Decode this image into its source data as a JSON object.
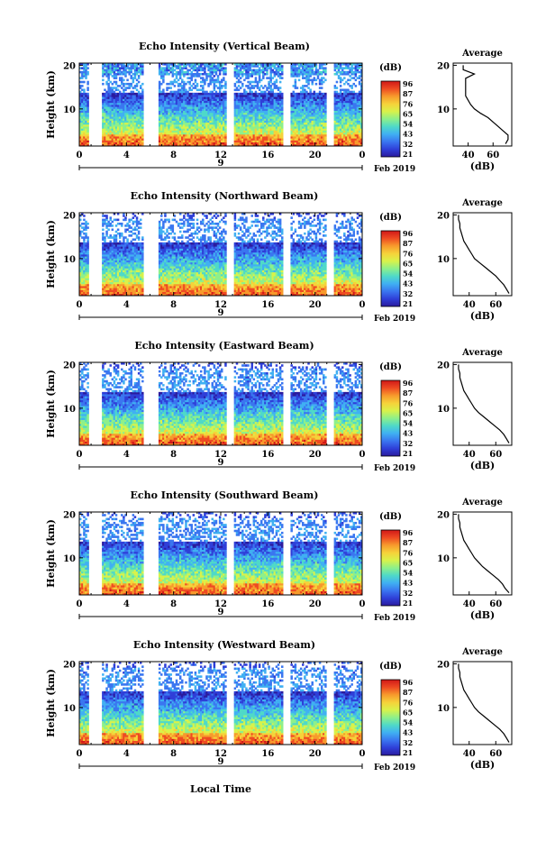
{
  "figure": {
    "bottom_xlabel": "Local Time",
    "date_label": "Feb 2019",
    "day_label": "9"
  },
  "colorbar": {
    "unit_label": "(dB)",
    "ticks": [
      "96",
      "87",
      "76",
      "65",
      "54",
      "43",
      "32",
      "21"
    ],
    "colors": [
      "#2b1b9e",
      "#2f3fd8",
      "#3a76f0",
      "#40b0f2",
      "#4fd9c8",
      "#8ef08a",
      "#d9f24a",
      "#f6d23a",
      "#f79a2c",
      "#ee4a22",
      "#d01818"
    ]
  },
  "chart_data": [
    {
      "type": "heatmap",
      "title": "Echo Intensity (Vertical Beam)",
      "ylabel": "Height (km)",
      "x_ticks": [
        "0",
        "4",
        "8",
        "12",
        "16",
        "20",
        "0"
      ],
      "y_ticks": [
        "10",
        "20"
      ],
      "xlim": [
        0,
        24
      ],
      "ylim": [
        1.5,
        20.5
      ],
      "data_gaps_hours": [
        1.1,
        1.6,
        5.8,
        6.4,
        12.8,
        17.6,
        21.3
      ],
      "echo_top_km": 18.0,
      "average_profile": {
        "title": "Average",
        "xlabel": "(dB)",
        "x_ticks": [
          "40",
          "60"
        ],
        "y_ticks": [
          "10",
          "20"
        ],
        "xlim": [
          28,
          75
        ],
        "ylim": [
          1.5,
          20.5
        ],
        "height_km": [
          2,
          3,
          4,
          5,
          6,
          7,
          8,
          9,
          10,
          11,
          12,
          13,
          14,
          15,
          16,
          17,
          18,
          19,
          20
        ],
        "db": [
          70,
          72,
          72,
          68,
          64,
          60,
          56,
          50,
          45,
          42,
          40,
          38,
          38,
          38,
          38,
          38,
          45,
          36,
          36
        ]
      }
    },
    {
      "type": "heatmap",
      "title": "Echo Intensity (Northward Beam)",
      "ylabel": "Height (km)",
      "x_ticks": [
        "0",
        "4",
        "8",
        "12",
        "16",
        "20",
        "0"
      ],
      "y_ticks": [
        "10",
        "20"
      ],
      "xlim": [
        0,
        24
      ],
      "ylim": [
        1.5,
        20.5
      ],
      "data_gaps_hours": [
        1.1,
        1.6,
        5.8,
        6.4,
        12.8,
        17.6,
        21.3
      ],
      "echo_top_km": 19.0,
      "average_profile": {
        "title": "Average",
        "xlabel": "(dB)",
        "x_ticks": [
          "40",
          "60"
        ],
        "y_ticks": [
          "10",
          "20"
        ],
        "xlim": [
          28,
          72
        ],
        "ylim": [
          1.5,
          20.5
        ],
        "height_km": [
          2,
          3,
          4,
          5,
          6,
          7,
          8,
          9,
          10,
          11,
          12,
          13,
          14,
          15,
          16,
          17,
          18,
          19,
          20
        ],
        "db": [
          70,
          68,
          66,
          63,
          60,
          56,
          52,
          48,
          44,
          42,
          40,
          38,
          36,
          35,
          34,
          33,
          33,
          32,
          32
        ]
      }
    },
    {
      "type": "heatmap",
      "title": "Echo Intensity (Eastward Beam)",
      "ylabel": "Height (km)",
      "x_ticks": [
        "0",
        "4",
        "8",
        "12",
        "16",
        "20",
        "0"
      ],
      "y_ticks": [
        "10",
        "20"
      ],
      "xlim": [
        0,
        24
      ],
      "ylim": [
        1.5,
        20.5
      ],
      "data_gaps_hours": [
        1.1,
        1.6,
        5.8,
        6.4,
        12.8,
        17.6,
        21.3
      ],
      "echo_top_km": 19.0,
      "average_profile": {
        "title": "Average",
        "xlabel": "(dB)",
        "x_ticks": [
          "40",
          "60"
        ],
        "y_ticks": [
          "10",
          "20"
        ],
        "xlim": [
          28,
          72
        ],
        "ylim": [
          1.5,
          20.5
        ],
        "height_km": [
          2,
          3,
          4,
          5,
          6,
          7,
          8,
          9,
          10,
          11,
          12,
          13,
          14,
          15,
          16,
          17,
          18,
          19,
          20
        ],
        "db": [
          70,
          68,
          66,
          63,
          59,
          55,
          51,
          47,
          44,
          42,
          40,
          38,
          36,
          35,
          34,
          33,
          33,
          32,
          32
        ]
      }
    },
    {
      "type": "heatmap",
      "title": "Echo Intensity (Southward Beam)",
      "ylabel": "Height (km)",
      "x_ticks": [
        "0",
        "4",
        "8",
        "12",
        "16",
        "20",
        "0"
      ],
      "y_ticks": [
        "10",
        "20"
      ],
      "xlim": [
        0,
        24
      ],
      "ylim": [
        1.5,
        20.5
      ],
      "data_gaps_hours": [
        1.1,
        1.6,
        5.8,
        6.4,
        12.8,
        17.6,
        21.3
      ],
      "echo_top_km": 19.0,
      "average_profile": {
        "title": "Average",
        "xlabel": "(dB)",
        "x_ticks": [
          "40",
          "60"
        ],
        "y_ticks": [
          "10",
          "20"
        ],
        "xlim": [
          28,
          72
        ],
        "ylim": [
          1.5,
          20.5
        ],
        "height_km": [
          2,
          3,
          4,
          5,
          6,
          7,
          8,
          9,
          10,
          11,
          12,
          13,
          14,
          15,
          16,
          17,
          18,
          19,
          20
        ],
        "db": [
          70,
          67,
          65,
          62,
          58,
          54,
          50,
          47,
          44,
          42,
          40,
          38,
          36,
          35,
          34,
          33,
          33,
          32,
          32
        ]
      }
    },
    {
      "type": "heatmap",
      "title": "Echo Intensity (Westward Beam)",
      "ylabel": "Height (km)",
      "x_ticks": [
        "0",
        "4",
        "8",
        "12",
        "16",
        "20",
        "0"
      ],
      "y_ticks": [
        "10",
        "20"
      ],
      "xlim": [
        0,
        24
      ],
      "ylim": [
        1.5,
        20.5
      ],
      "data_gaps_hours": [
        1.1,
        1.6,
        5.8,
        6.4,
        12.8,
        17.6,
        21.3
      ],
      "echo_top_km": 19.0,
      "average_profile": {
        "title": "Average",
        "xlabel": "(dB)",
        "x_ticks": [
          "40",
          "60"
        ],
        "y_ticks": [
          "10",
          "20"
        ],
        "xlim": [
          28,
          72
        ],
        "ylim": [
          1.5,
          20.5
        ],
        "height_km": [
          2,
          3,
          4,
          5,
          6,
          7,
          8,
          9,
          10,
          11,
          12,
          13,
          14,
          15,
          16,
          17,
          18,
          19,
          20
        ],
        "db": [
          70,
          68,
          66,
          63,
          59,
          55,
          51,
          47,
          44,
          42,
          40,
          38,
          36,
          35,
          34,
          33,
          33,
          32,
          32
        ]
      }
    }
  ]
}
